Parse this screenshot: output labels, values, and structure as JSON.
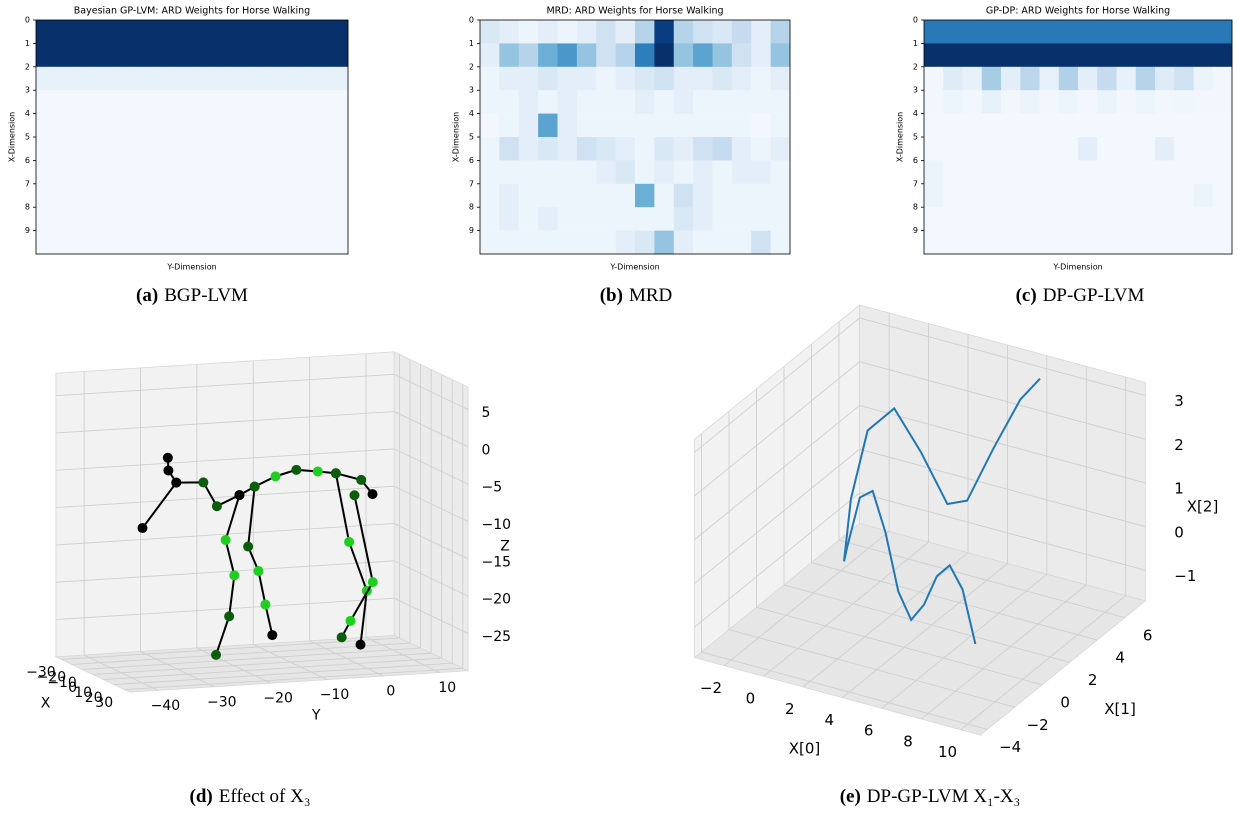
{
  "chart_data": [
    {
      "type": "heatmap",
      "title": "Bayesian GP-LVM: ARD Weights for Horse Walking",
      "xlabel": "Y-Dimension",
      "ylabel": "X-Dimension",
      "ylim": [
        0,
        10
      ],
      "yticks": [
        0,
        1,
        2,
        3,
        4,
        5,
        6,
        7,
        8,
        9
      ],
      "cmap": "Blues",
      "caption_label": "(a)",
      "caption": "BGP-LVM",
      "matrix": [
        [
          1,
          1,
          1,
          1,
          1,
          1,
          1,
          1,
          1,
          1,
          1,
          1,
          1,
          1,
          1,
          1
        ],
        [
          1,
          1,
          1,
          1,
          1,
          1,
          1,
          1,
          1,
          1,
          1,
          1,
          1,
          1,
          1,
          1
        ],
        [
          0.08,
          0.08,
          0.08,
          0.08,
          0.08,
          0.08,
          0.08,
          0.08,
          0.08,
          0.08,
          0.08,
          0.08,
          0.08,
          0.08,
          0.08,
          0.08
        ],
        [
          0.02,
          0.02,
          0.02,
          0.02,
          0.02,
          0.02,
          0.02,
          0.02,
          0.02,
          0.02,
          0.02,
          0.02,
          0.02,
          0.02,
          0.02,
          0.02
        ],
        [
          0.02,
          0.02,
          0.02,
          0.02,
          0.02,
          0.02,
          0.02,
          0.02,
          0.02,
          0.02,
          0.02,
          0.02,
          0.02,
          0.02,
          0.02,
          0.02
        ],
        [
          0.02,
          0.02,
          0.02,
          0.02,
          0.02,
          0.02,
          0.02,
          0.02,
          0.02,
          0.02,
          0.02,
          0.02,
          0.02,
          0.02,
          0.02,
          0.02
        ],
        [
          0.02,
          0.02,
          0.02,
          0.02,
          0.02,
          0.02,
          0.02,
          0.02,
          0.02,
          0.02,
          0.02,
          0.02,
          0.02,
          0.02,
          0.02,
          0.02
        ],
        [
          0.02,
          0.02,
          0.02,
          0.02,
          0.02,
          0.02,
          0.02,
          0.02,
          0.02,
          0.02,
          0.02,
          0.02,
          0.02,
          0.02,
          0.02,
          0.02
        ],
        [
          0.02,
          0.02,
          0.02,
          0.02,
          0.02,
          0.02,
          0.02,
          0.02,
          0.02,
          0.02,
          0.02,
          0.02,
          0.02,
          0.02,
          0.02,
          0.02
        ],
        [
          0.02,
          0.02,
          0.02,
          0.02,
          0.02,
          0.02,
          0.02,
          0.02,
          0.02,
          0.02,
          0.02,
          0.02,
          0.02,
          0.02,
          0.02,
          0.02
        ]
      ]
    },
    {
      "type": "heatmap",
      "title": "MRD: ARD Weights for Horse Walking",
      "xlabel": "Y-Dimension",
      "ylabel": "X-Dimension",
      "ylim": [
        0,
        10
      ],
      "yticks": [
        0,
        1,
        2,
        3,
        4,
        5,
        6,
        7,
        8,
        9
      ],
      "cmap": "Blues",
      "caption_label": "(b)",
      "caption": "MRD",
      "matrix": [
        [
          0.15,
          0.1,
          0.05,
          0.1,
          0.05,
          0.1,
          0.2,
          0.1,
          0.3,
          0.95,
          0.3,
          0.2,
          0.15,
          0.25,
          0.1,
          0.3
        ],
        [
          0.1,
          0.4,
          0.3,
          0.5,
          0.6,
          0.4,
          0.2,
          0.3,
          0.7,
          1.0,
          0.4,
          0.55,
          0.4,
          0.2,
          0.1,
          0.4
        ],
        [
          0.05,
          0.1,
          0.1,
          0.15,
          0.1,
          0.1,
          0.05,
          0.1,
          0.15,
          0.2,
          0.1,
          0.1,
          0.15,
          0.1,
          0.05,
          0.1
        ],
        [
          0.05,
          0.05,
          0.1,
          0.05,
          0.1,
          0.05,
          0.05,
          0.05,
          0.1,
          0.05,
          0.1,
          0.05,
          0.05,
          0.05,
          0.05,
          0.05
        ],
        [
          0.03,
          0.05,
          0.1,
          0.55,
          0.1,
          0.05,
          0.05,
          0.05,
          0.05,
          0.05,
          0.05,
          0.05,
          0.05,
          0.05,
          0.03,
          0.05
        ],
        [
          0.05,
          0.2,
          0.1,
          0.15,
          0.1,
          0.2,
          0.15,
          0.1,
          0.05,
          0.15,
          0.1,
          0.2,
          0.25,
          0.1,
          0.05,
          0.1
        ],
        [
          0.05,
          0.05,
          0.05,
          0.05,
          0.05,
          0.05,
          0.1,
          0.15,
          0.05,
          0.1,
          0.05,
          0.1,
          0.05,
          0.1,
          0.1,
          0.05
        ],
        [
          0.05,
          0.1,
          0.05,
          0.05,
          0.05,
          0.05,
          0.05,
          0.05,
          0.5,
          0.05,
          0.2,
          0.1,
          0.05,
          0.05,
          0.05,
          0.05
        ],
        [
          0.05,
          0.1,
          0.05,
          0.1,
          0.05,
          0.05,
          0.05,
          0.05,
          0.05,
          0.05,
          0.15,
          0.1,
          0.05,
          0.05,
          0.05,
          0.05
        ],
        [
          0.05,
          0.05,
          0.05,
          0.05,
          0.05,
          0.05,
          0.05,
          0.1,
          0.15,
          0.4,
          0.1,
          0.05,
          0.05,
          0.05,
          0.2,
          0.05
        ]
      ]
    },
    {
      "type": "heatmap",
      "title": "GP-DP: ARD Weights for Horse Walking",
      "xlabel": "Y-Dimension",
      "ylabel": "X-Dimension",
      "ylim": [
        0,
        10
      ],
      "yticks": [
        0,
        1,
        2,
        3,
        4,
        5,
        6,
        7,
        8,
        9
      ],
      "cmap": "Blues",
      "caption_label": "(c)",
      "caption": "DP-GP-LVM",
      "matrix": [
        [
          0.72,
          0.72,
          0.72,
          0.72,
          0.72,
          0.72,
          0.72,
          0.72,
          0.72,
          0.72,
          0.72,
          0.72,
          0.72,
          0.72,
          0.72,
          0.72
        ],
        [
          1,
          1,
          1,
          1,
          1,
          1,
          1,
          1,
          1,
          1,
          1,
          1,
          1,
          1,
          1,
          1
        ],
        [
          0.03,
          0.12,
          0.08,
          0.35,
          0.1,
          0.28,
          0.08,
          0.32,
          0.1,
          0.25,
          0.08,
          0.3,
          0.12,
          0.2,
          0.06,
          0.03
        ],
        [
          0.03,
          0.05,
          0.03,
          0.08,
          0.03,
          0.06,
          0.03,
          0.05,
          0.03,
          0.06,
          0.03,
          0.05,
          0.03,
          0.04,
          0.03,
          0.03
        ],
        [
          0.02,
          0.02,
          0.02,
          0.02,
          0.02,
          0.02,
          0.02,
          0.02,
          0.02,
          0.02,
          0.02,
          0.02,
          0.02,
          0.02,
          0.02,
          0.02
        ],
        [
          0.02,
          0.02,
          0.02,
          0.02,
          0.02,
          0.02,
          0.02,
          0.02,
          0.1,
          0.02,
          0.02,
          0.02,
          0.1,
          0.02,
          0.02,
          0.02
        ],
        [
          0.06,
          0.02,
          0.02,
          0.02,
          0.02,
          0.02,
          0.02,
          0.02,
          0.02,
          0.02,
          0.02,
          0.02,
          0.02,
          0.02,
          0.02,
          0.02
        ],
        [
          0.06,
          0.02,
          0.02,
          0.02,
          0.02,
          0.02,
          0.02,
          0.02,
          0.02,
          0.02,
          0.02,
          0.02,
          0.02,
          0.02,
          0.06,
          0.02
        ],
        [
          0.02,
          0.02,
          0.02,
          0.02,
          0.02,
          0.02,
          0.02,
          0.02,
          0.02,
          0.02,
          0.02,
          0.02,
          0.02,
          0.02,
          0.02,
          0.02
        ],
        [
          0.02,
          0.02,
          0.02,
          0.02,
          0.02,
          0.02,
          0.02,
          0.02,
          0.02,
          0.02,
          0.02,
          0.02,
          0.02,
          0.02,
          0.02,
          0.02
        ]
      ]
    },
    {
      "type": "line3d",
      "xlabel": "X",
      "ylabel": "Y",
      "zlabel": "Z",
      "caption_label": "(d)",
      "caption": "Effect of X₃",
      "xlim": [
        -35,
        35
      ],
      "ylim": [
        -45,
        15
      ],
      "zlim": [
        -30,
        8
      ],
      "xticks": [
        {
          "value": -30,
          "label": "−30"
        },
        {
          "value": -20,
          "label": "−20"
        },
        {
          "value": -10,
          "label": "−10"
        },
        0,
        10,
        20,
        30
      ],
      "yticks": [
        {
          "value": -40,
          "label": "−40"
        },
        {
          "value": -30,
          "label": "−30"
        },
        {
          "value": -20,
          "label": "−20"
        },
        {
          "value": -10,
          "label": "−10"
        },
        0,
        10
      ],
      "zticks": [
        5,
        0,
        {
          "value": -5,
          "label": "−5"
        },
        {
          "value": -10,
          "label": "−10"
        },
        {
          "value": -15,
          "label": "−15"
        },
        {
          "value": -20,
          "label": "−20"
        },
        {
          "value": -25,
          "label": "−25"
        }
      ],
      "series": [
        {
          "color": "#000000",
          "x": [
            0,
            0,
            0,
            0,
            0,
            0,
            0,
            0,
            0,
            0,
            0,
            0,
            0
          ],
          "y": [
            -31.7,
            -31.6,
            -30.2,
            -25.4,
            -23.0,
            -19.0,
            -16.3,
            -12.6,
            -8.9,
            -5.1,
            -1.9,
            2.6,
            4.6
          ],
          "z": [
            -1.6,
            -3.3,
            -5.0,
            -5.2,
            -8.5,
            -7.2,
            -6.2,
            -5.0,
            -4.3,
            -4.7,
            -5.1,
            -6.2,
            -8.2
          ],
          "marker_colors": [
            "#000000",
            "#000000",
            "#000000",
            "#0b5d0b",
            "#0b5d0b",
            "#000000",
            "#0b5d0b",
            "#1fcf1f",
            "#0b5d0b",
            "#1fcf1f",
            "#0b5d0b",
            "#0b5d0b",
            "#000000"
          ]
        },
        {
          "color": "#000000",
          "x": [
            0,
            0
          ],
          "y": [
            -30.2,
            -36.2
          ],
          "z": [
            -5.0,
            -10.8
          ],
          "marker_colors": [
            "#000000",
            "#000000"
          ]
        },
        {
          "color": "#000000",
          "x": [
            0,
            4,
            8,
            10,
            12
          ],
          "y": [
            -19.0,
            -22.2,
            -21.4,
            -22.7,
            -25.4
          ],
          "z": [
            -7.2,
            -12.8,
            -17.3,
            -22.6,
            -27.5
          ],
          "marker_colors": [
            "#000000",
            "#1fcf1f",
            "#1fcf1f",
            "#0b5d0b",
            "#0b5d0b"
          ]
        },
        {
          "color": "#000000",
          "x": [
            0,
            -3,
            -6,
            -8,
            -10
          ],
          "y": [
            -16.3,
            -16.9,
            -14.5,
            -12.9,
            -11.3
          ],
          "z": [
            -6.2,
            -14.4,
            -18.0,
            -22.7,
            -27.0
          ],
          "marker_colors": [
            "#0b5d0b",
            "#0b5d0b",
            "#1fcf1f",
            "#1fcf1f",
            "#000000"
          ]
        },
        {
          "color": "#000000",
          "x": [
            0,
            4,
            8,
            10
          ],
          "y": [
            -1.9,
            -0.3,
            2.1,
            0.6
          ],
          "z": [
            -5.1,
            -14.1,
            -20.5,
            -27.5
          ],
          "marker_colors": [
            "#0b5d0b",
            "#1fcf1f",
            "#1fcf1f",
            "#000000"
          ]
        },
        {
          "color": "#000000",
          "x": [
            0,
            -4,
            -8,
            -10
          ],
          "y": [
            1.4,
            5.4,
            2.2,
            1.0
          ],
          "z": [
            -8.2,
            -20.3,
            -25.6,
            -27.9
          ],
          "marker_colors": [
            "#0b5d0b",
            "#1fcf1f",
            "#1fcf1f",
            "#0b5d0b"
          ]
        }
      ]
    },
    {
      "type": "line3d",
      "xlabel": "X[0]",
      "ylabel": "X[1]",
      "zlabel": "X[2]",
      "caption_label": "(e)",
      "caption": "DP-GP-LVM X₁-X₃",
      "xlim": [
        -3.5,
        11
      ],
      "ylim": [
        -4.5,
        7.5
      ],
      "zlim": [
        -1.7,
        3.3
      ],
      "xticks": [
        {
          "value": -2,
          "label": "−2"
        },
        0,
        2,
        4,
        6,
        8,
        10
      ],
      "yticks": [
        {
          "value": -4,
          "label": "−4"
        },
        {
          "value": -2,
          "label": "−2"
        },
        0,
        2,
        4,
        6
      ],
      "zticks": [
        {
          "value": -1,
          "label": "−1"
        },
        0,
        1,
        2,
        3
      ],
      "series": [
        {
          "color": "#1f77b4",
          "x": [
            9,
            8,
            7,
            6,
            5,
            4,
            3,
            2,
            1,
            0,
            -1,
            -1.5,
            -1.5,
            -1,
            0,
            1,
            2,
            3,
            4,
            5,
            6
          ],
          "y": [
            -2,
            -1.5,
            -1,
            -0.5,
            0,
            0.5,
            1,
            1.5,
            2,
            2.5,
            3,
            3.5,
            4,
            4.5,
            5,
            5.5,
            6,
            6,
            6.5,
            7,
            7
          ],
          "z": [
            -0.5,
            0.5,
            0.8,
            0.3,
            -0.6,
            -1.2,
            -0.8,
            0.3,
            1,
            0.6,
            -0.8,
            -1.3,
            0,
            1.5,
            2,
            1,
            -0.2,
            0,
            1.2,
            2.3,
            2.9
          ]
        }
      ]
    }
  ]
}
